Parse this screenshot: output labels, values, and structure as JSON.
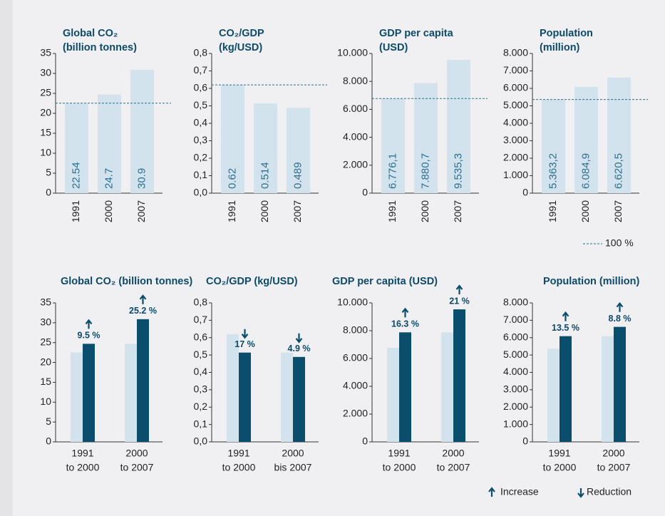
{
  "chart_data": [
    {
      "type": "bar",
      "title": [
        "Global CO₂",
        "(billion tonnes)"
      ],
      "categories": [
        "1991",
        "2000",
        "2007"
      ],
      "values": [
        22.54,
        24.7,
        30.9
      ],
      "color": "#d2e3ee",
      "baseline": true,
      "ylim": [
        0,
        35
      ],
      "yticks": [
        0,
        5,
        10,
        15,
        20,
        25,
        30,
        35
      ]
    },
    {
      "type": "bar",
      "title": [
        "CO₂/GDP",
        "(kg/USD)"
      ],
      "categories": [
        "1991",
        "2000",
        "2007"
      ],
      "values": [
        0.62,
        0.514,
        0.489
      ],
      "color": "#d2e3ee",
      "baseline": true,
      "ylim": [
        0,
        0.8
      ],
      "yticks": [
        {
          "value": 0,
          "label": "0,0"
        },
        {
          "value": 0.1,
          "label": "0,1"
        },
        {
          "value": 0.2,
          "label": "0,2"
        },
        {
          "value": 0.3,
          "label": "0,3"
        },
        {
          "value": 0.4,
          "label": "0,4"
        },
        {
          "value": 0.5,
          "label": "0,5"
        },
        {
          "value": 0.6,
          "label": "0,6"
        },
        {
          "value": 0.7,
          "label": "0,7"
        },
        {
          "value": 0.8,
          "label": "0,8"
        }
      ]
    },
    {
      "type": "bar",
      "title": [
        "GDP per capita",
        "(USD)"
      ],
      "categories": [
        "1991",
        "2000",
        "2007"
      ],
      "values": [
        6776.1,
        7880.7,
        9535.3
      ],
      "value_labels": [
        "6.776,1",
        "7.880,7",
        "9.535,3"
      ],
      "color": "#d2e3ee",
      "baseline": true,
      "ylim": [
        0,
        10000
      ],
      "yticks": [
        0,
        {
          "value": 2000,
          "label": "2.000"
        },
        {
          "value": 4000,
          "label": "4.000"
        },
        {
          "value": 6000,
          "label": "6.000"
        },
        {
          "value": 8000,
          "label": "8.000"
        },
        {
          "value": 10000,
          "label": "10.000"
        }
      ]
    },
    {
      "type": "bar",
      "title": [
        "Population",
        "(million)"
      ],
      "categories": [
        "1991",
        "2000",
        "2007"
      ],
      "values": [
        5363.2,
        6084.9,
        6620.5
      ],
      "value_labels": [
        "5.363,2",
        "6.084,9",
        "6.620,5"
      ],
      "color": "#d2e3ee",
      "baseline": true,
      "ylim": [
        0,
        8000
      ],
      "yticks": [
        0,
        {
          "value": 1000,
          "label": "1.000"
        },
        {
          "value": 2000,
          "label": "2.000"
        },
        {
          "value": 3000,
          "label": "3.000"
        },
        {
          "value": 4000,
          "label": "4.000"
        },
        {
          "value": 5000,
          "label": "5.000"
        },
        {
          "value": 6000,
          "label": "6.000"
        },
        {
          "value": 7000,
          "label": "7.000"
        },
        {
          "value": 8000,
          "label": "8.000"
        }
      ]
    },
    {
      "type": "grouped_bar",
      "title": [
        "Global CO₂ (billion tonnes)"
      ],
      "categories": [
        [
          "1991",
          "to 2000"
        ],
        [
          "2000",
          "to 2007"
        ]
      ],
      "series": [
        {
          "color": "#d2e3ee",
          "values": [
            22.54,
            24.7
          ]
        },
        {
          "color": "#0b4d6c",
          "values": [
            24.7,
            30.9
          ]
        }
      ],
      "changes": {
        "values": [
          9.5,
          25.2
        ],
        "value_labels": [
          "9.5 %",
          "25.2 %"
        ],
        "direction": [
          "up",
          "up"
        ]
      },
      "ylim": [
        0,
        35
      ],
      "yticks": [
        0,
        5,
        10,
        15,
        20,
        25,
        30,
        35
      ]
    },
    {
      "type": "grouped_bar",
      "title": [
        "CO₂/GDP (kg/USD)"
      ],
      "categories": [
        [
          "1991",
          "to 2000"
        ],
        [
          "2000",
          "bis 2007"
        ]
      ],
      "series": [
        {
          "color": "#d2e3ee",
          "values": [
            0.62,
            0.514
          ]
        },
        {
          "color": "#0b4d6c",
          "values": [
            0.514,
            0.489
          ]
        }
      ],
      "changes": {
        "values": [
          17,
          4.9
        ],
        "value_labels": [
          "17 %",
          "4.9 %"
        ],
        "direction": [
          "down",
          "down"
        ]
      },
      "ylim": [
        0,
        0.8
      ],
      "yticks": [
        {
          "value": 0,
          "label": "0,0"
        },
        {
          "value": 0.1,
          "label": "0,1"
        },
        {
          "value": 0.2,
          "label": "0,2"
        },
        {
          "value": 0.3,
          "label": "0,3"
        },
        {
          "value": 0.4,
          "label": "0,4"
        },
        {
          "value": 0.5,
          "label": "0,5"
        },
        {
          "value": 0.6,
          "label": "0,6"
        },
        {
          "value": 0.7,
          "label": "0,7"
        },
        {
          "value": 0.8,
          "label": "0,8"
        }
      ]
    },
    {
      "type": "grouped_bar",
      "title": [
        "GDP per capita (USD)"
      ],
      "categories": [
        [
          "1991",
          "to 2000"
        ],
        [
          "2000",
          "to 2007"
        ]
      ],
      "series": [
        {
          "color": "#d2e3ee",
          "values": [
            6776.1,
            7880.7
          ]
        },
        {
          "color": "#0b4d6c",
          "values": [
            7880.7,
            9535.3
          ]
        }
      ],
      "changes": {
        "values": [
          16.3,
          21
        ],
        "value_labels": [
          "16.3 %",
          "21 %"
        ],
        "direction": [
          "up",
          "up"
        ]
      },
      "ylim": [
        0,
        10000
      ],
      "yticks": [
        0,
        {
          "value": 2000,
          "label": "2.000"
        },
        {
          "value": 4000,
          "label": "4.000"
        },
        {
          "value": 6000,
          "label": "6.000"
        },
        {
          "value": 8000,
          "label": "8.000"
        },
        {
          "value": 10000,
          "label": "10.000"
        }
      ]
    },
    {
      "type": "grouped_bar",
      "title": [
        "Population (million)"
      ],
      "categories": [
        [
          "1991",
          "to 2000"
        ],
        [
          "2000",
          "to 2007"
        ]
      ],
      "series": [
        {
          "color": "#d2e3ee",
          "values": [
            5363.2,
            6084.9
          ]
        },
        {
          "color": "#0b4d6c",
          "values": [
            6084.9,
            6620.5
          ]
        }
      ],
      "changes": {
        "values": [
          13.5,
          8.8
        ],
        "value_labels": [
          "13.5 %",
          "8.8 %"
        ],
        "direction": [
          "up",
          "up"
        ]
      },
      "ylim": [
        0,
        8000
      ],
      "yticks": [
        0,
        {
          "value": 1000,
          "label": "1.000"
        },
        {
          "value": 2000,
          "label": "2.000"
        },
        {
          "value": 3000,
          "label": "3.000"
        },
        {
          "value": 4000,
          "label": "4.000"
        },
        {
          "value": 5000,
          "label": "5.000"
        },
        {
          "value": 6000,
          "label": "6.000"
        },
        {
          "value": 7000,
          "label": "7.000"
        },
        {
          "value": 8000,
          "label": "8.000"
        }
      ]
    }
  ],
  "legend": {
    "baseline": "100 %",
    "increase": "Increase",
    "reduction": "Reduction"
  }
}
